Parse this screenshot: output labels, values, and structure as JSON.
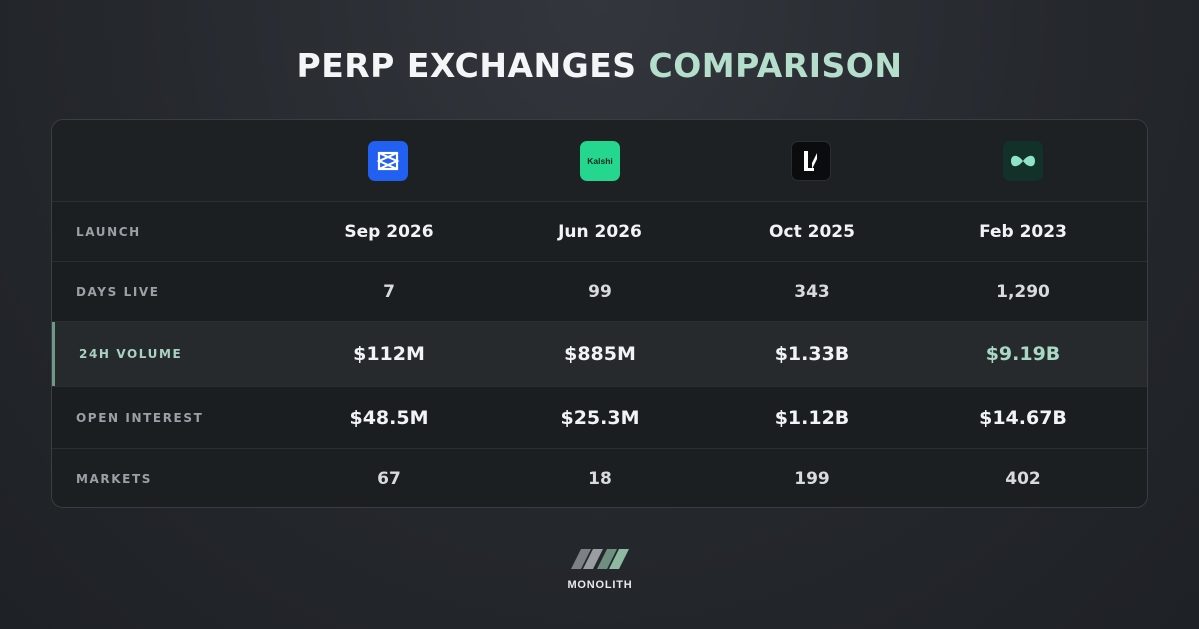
{
  "title": {
    "part1": "PERP EXCHANGES",
    "part2": "COMPARISON"
  },
  "colors": {
    "accent": "#a9d9c3",
    "kalshi": "#25d68f",
    "blue": "#2160f0",
    "dark_green": "#123129"
  },
  "logos": [
    {
      "icon": "blue-box-logo-icon"
    },
    {
      "icon": "kalshi-logo-icon",
      "text": "Kalshi"
    },
    {
      "icon": "lighter-logo-icon"
    },
    {
      "icon": "hyperliquid-logo-icon"
    }
  ],
  "rows": [
    {
      "label": "LAUNCH",
      "values": [
        "Sep 2026",
        "Jun 2026",
        "Oct 2025",
        "Feb 2023"
      ]
    },
    {
      "label": "DAYS LIVE",
      "values": [
        "7",
        "99",
        "343",
        "1,290"
      ]
    },
    {
      "label": "24H VOLUME",
      "values": [
        "$112M",
        "$885M",
        "$1.33B",
        "$9.19B"
      ]
    },
    {
      "label": "OPEN INTEREST",
      "values": [
        "$48.5M",
        "$25.3M",
        "$1.12B",
        "$14.67B"
      ]
    },
    {
      "label": "MARKETS",
      "values": [
        "67",
        "18",
        "199",
        "402"
      ]
    }
  ],
  "brand": {
    "name": "MONOLITH",
    "icon": "monolith-logo-icon"
  }
}
